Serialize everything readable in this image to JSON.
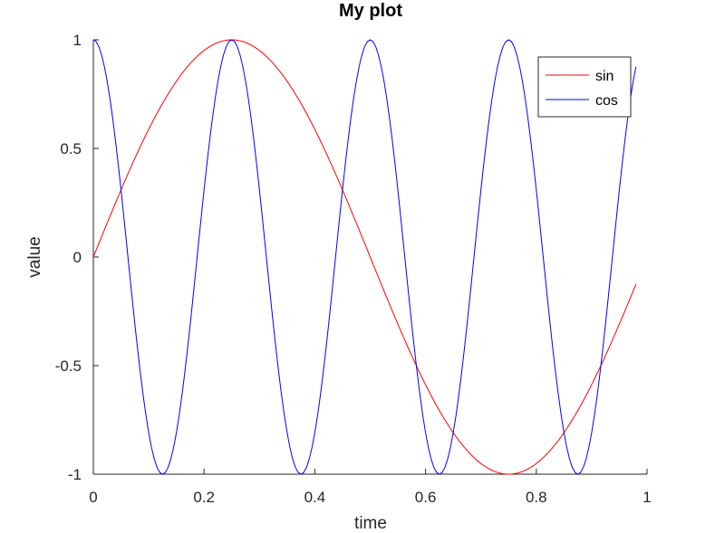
{
  "chart_data": {
    "type": "line",
    "title": "My plot",
    "xlabel": "time",
    "ylabel": "value",
    "xlim": [
      0,
      1
    ],
    "ylim": [
      -1,
      1
    ],
    "x_ticks": [
      "0",
      "0.2",
      "0.4",
      "0.6",
      "0.8",
      "1"
    ],
    "y_ticks": [
      "1",
      "0.5",
      "0",
      "-0.5",
      "-1"
    ],
    "grid": false,
    "legend_position": "top-right",
    "x": {
      "start": 0,
      "end": 0.98,
      "step": 0.005
    },
    "series": [
      {
        "name": "sin",
        "color": "#ff0000",
        "function": "sin(2*pi*t)"
      },
      {
        "name": "cos",
        "color": "#0000ff",
        "function": "cos(8*pi*t)"
      }
    ]
  }
}
